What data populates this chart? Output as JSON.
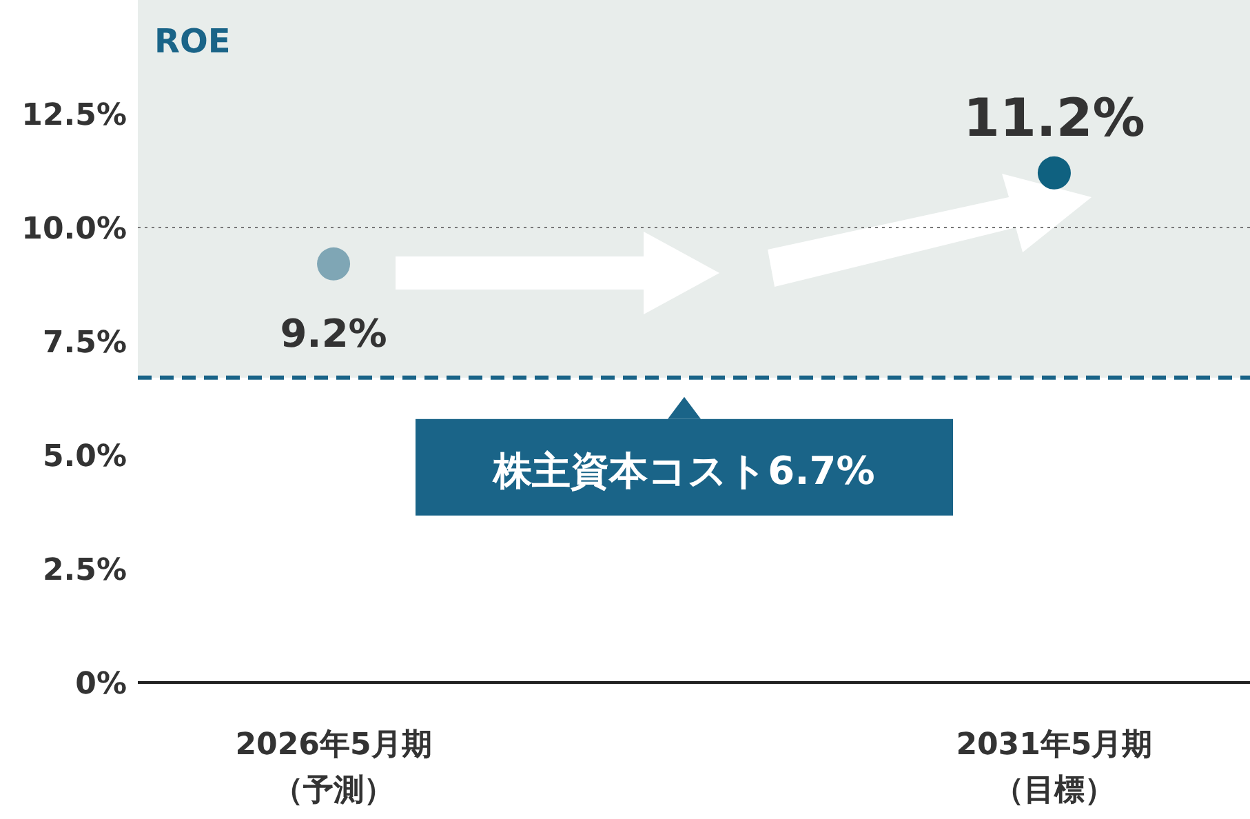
{
  "chart_data": {
    "type": "scatter",
    "title": "ROE",
    "categories": [
      "2026年5月期（予測）",
      "2031年5月期（目標）"
    ],
    "series": [
      {
        "colors": [
          "#7fa6b5",
          "#0f6180"
        ],
        "values": [
          9.2,
          11.2
        ],
        "value_labels": [
          "9.2%",
          "11.2%"
        ]
      }
    ],
    "ylim": [
      0,
      15
    ],
    "yticks": [
      {
        "value": 0,
        "label": "0%"
      },
      {
        "value": 2.5,
        "label": "2.5%"
      },
      {
        "value": 5,
        "label": "5.0%"
      },
      {
        "value": 7.5,
        "label": "7.5%"
      },
      {
        "value": 10,
        "label": "10.0%"
      },
      {
        "value": 12.5,
        "label": "12.5%"
      }
    ],
    "bands": [
      {
        "axis": "y",
        "from": 6.7,
        "to": 15,
        "color": "#e8edeb"
      }
    ],
    "ref_lines": [
      {
        "axis": "y",
        "value": 6.7,
        "label": "株主資本コスト6.7%",
        "color": "#1a6488",
        "line_style": "dashed"
      },
      {
        "axis": "y",
        "value": 10,
        "color": "#777777",
        "line_style": "dotted"
      }
    ],
    "grid": false,
    "marker": "circle"
  }
}
